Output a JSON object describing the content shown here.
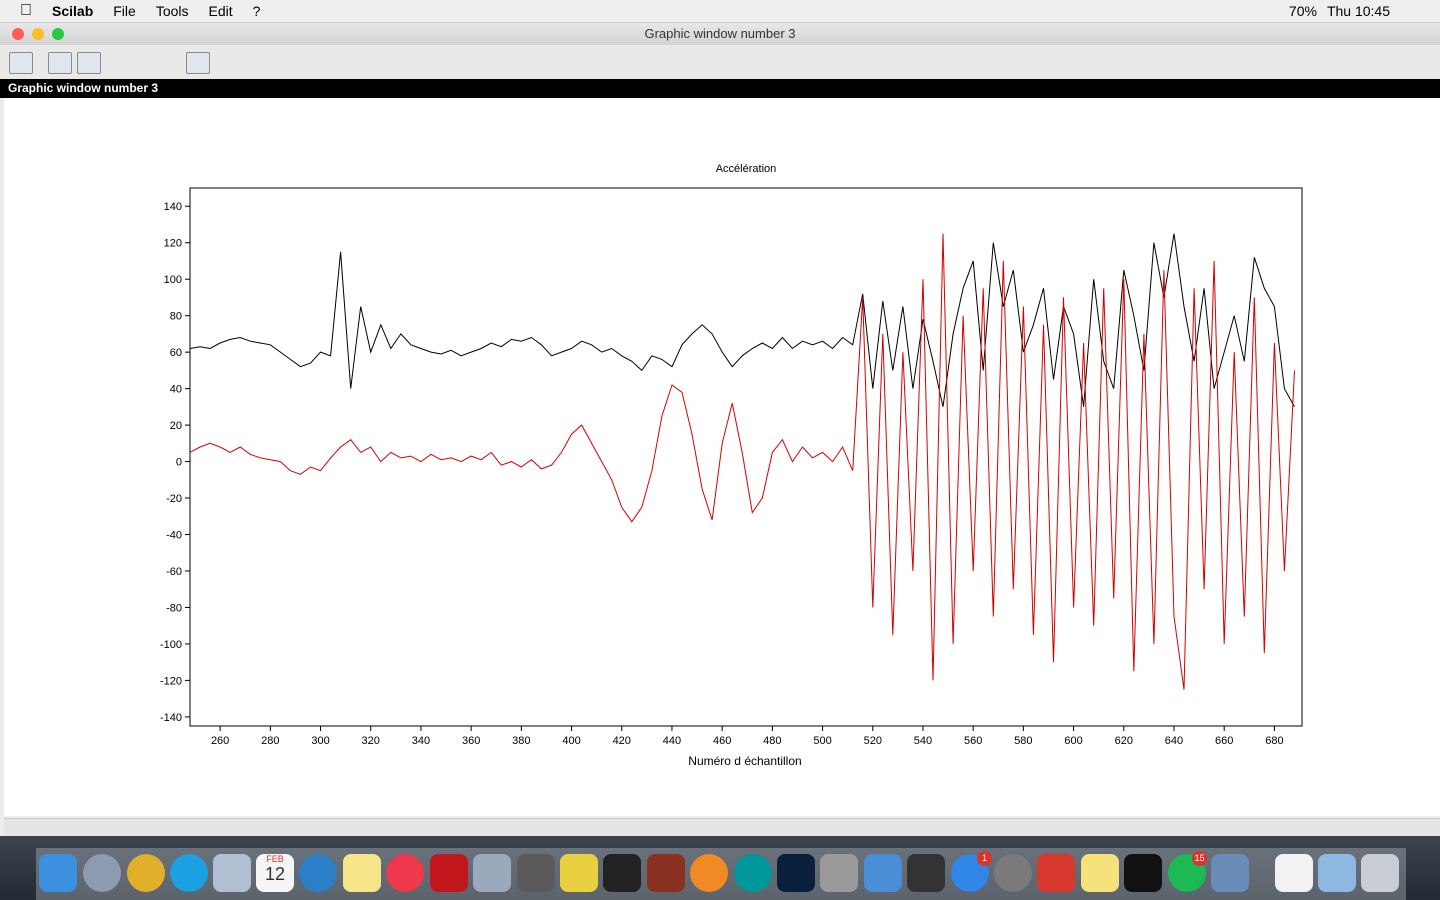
{
  "menubar": {
    "app": "Scilab",
    "items": [
      "File",
      "Tools",
      "Edit",
      "?"
    ],
    "battery": "70%",
    "clock": "Thu 10:45"
  },
  "window": {
    "title": "Graphic window number 3",
    "strip_title": "Graphic window number 3"
  },
  "dock": {
    "calendar_month": "FEB",
    "calendar_day": "12",
    "badges": [
      "1",
      "15"
    ]
  },
  "chart_data": {
    "type": "line",
    "title": "Accélération",
    "x_label": "Numéro d échantillon",
    "xlim": [
      248,
      691
    ],
    "ylim": [
      -145,
      150
    ],
    "xticks": [
      260,
      280,
      300,
      320,
      340,
      360,
      380,
      400,
      420,
      440,
      460,
      480,
      500,
      520,
      540,
      560,
      580,
      600,
      620,
      640,
      660,
      680
    ],
    "yticks": [
      -140,
      -120,
      -100,
      -80,
      -60,
      -40,
      -20,
      0,
      20,
      40,
      60,
      80,
      100,
      120,
      140
    ],
    "x": [
      248,
      252,
      256,
      260,
      264,
      268,
      272,
      276,
      280,
      284,
      288,
      292,
      296,
      300,
      304,
      308,
      312,
      316,
      320,
      324,
      328,
      332,
      336,
      340,
      344,
      348,
      352,
      356,
      360,
      364,
      368,
      372,
      376,
      380,
      384,
      388,
      392,
      396,
      400,
      404,
      408,
      412,
      416,
      420,
      424,
      428,
      432,
      436,
      440,
      444,
      448,
      452,
      456,
      460,
      464,
      468,
      472,
      476,
      480,
      484,
      488,
      492,
      496,
      500,
      504,
      508,
      512,
      516,
      520,
      524,
      528,
      532,
      536,
      540,
      544,
      548,
      552,
      556,
      560,
      564,
      568,
      572,
      576,
      580,
      584,
      588,
      592,
      596,
      600,
      604,
      608,
      612,
      616,
      620,
      624,
      628,
      632,
      636,
      640,
      644,
      648,
      652,
      656,
      660,
      664,
      668,
      672,
      676,
      680,
      684,
      688
    ],
    "series": [
      {
        "color": "#000000",
        "values": [
          62,
          63,
          62,
          65,
          67,
          68,
          66,
          65,
          64,
          60,
          56,
          52,
          54,
          60,
          58,
          115,
          40,
          85,
          60,
          75,
          62,
          70,
          64,
          62,
          60,
          59,
          61,
          58,
          60,
          62,
          65,
          63,
          67,
          66,
          68,
          64,
          58,
          60,
          62,
          66,
          64,
          60,
          62,
          58,
          55,
          50,
          58,
          56,
          52,
          64,
          70,
          75,
          70,
          60,
          52,
          58,
          62,
          65,
          62,
          68,
          62,
          66,
          64,
          66,
          62,
          68,
          64,
          92,
          40,
          88,
          50,
          85,
          40,
          78,
          55,
          30,
          70,
          95,
          110,
          50,
          120,
          85,
          105,
          60,
          75,
          95,
          45,
          85,
          70,
          30,
          100,
          55,
          40,
          105,
          80,
          50,
          120,
          90,
          125,
          85,
          55,
          95,
          40,
          60,
          80,
          55,
          112,
          95,
          85,
          40,
          30
        ]
      },
      {
        "color": "#d40000",
        "values": [
          5,
          8,
          10,
          8,
          5,
          8,
          4,
          2,
          1,
          0,
          -5,
          -7,
          -3,
          -5,
          2,
          8,
          12,
          5,
          8,
          0,
          5,
          2,
          3,
          0,
          4,
          1,
          2,
          0,
          3,
          1,
          5,
          -2,
          0,
          -3,
          1,
          -4,
          -2,
          5,
          15,
          20,
          10,
          0,
          -10,
          -25,
          -33,
          -25,
          -5,
          25,
          42,
          38,
          15,
          -15,
          -32,
          10,
          32,
          5,
          -28,
          -20,
          5,
          12,
          0,
          8,
          2,
          5,
          0,
          8,
          -5,
          90,
          -80,
          70,
          -95,
          60,
          -60,
          100,
          -120,
          125,
          -100,
          80,
          -60,
          95,
          -85,
          110,
          -70,
          85,
          -95,
          75,
          -110,
          90,
          -80,
          65,
          -90,
          95,
          -75,
          100,
          -115,
          70,
          -100,
          105,
          -85,
          -125,
          95,
          -70,
          110,
          -100,
          60,
          -85,
          90,
          -105,
          65,
          -60,
          50
        ]
      }
    ]
  }
}
